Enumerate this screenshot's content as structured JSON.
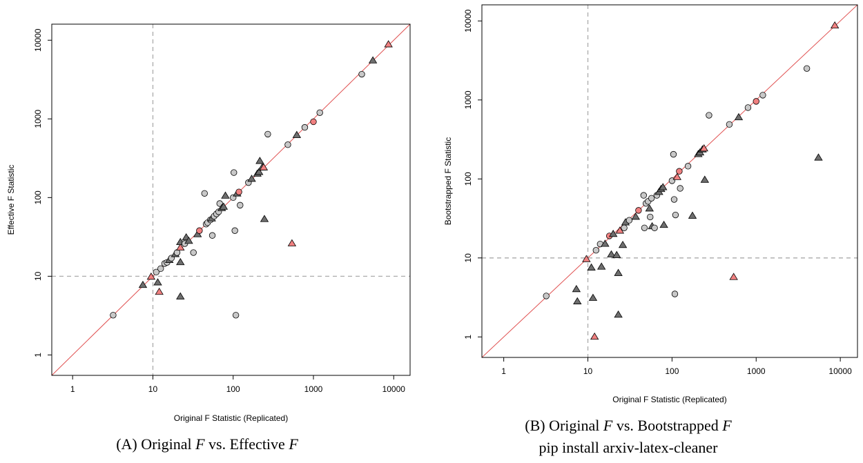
{
  "chart_data": [
    {
      "type": "scatter",
      "scale": "log10-log10",
      "xlabel": "Original F Statistic (Replicated)",
      "ylabel": "Effective F Statistic",
      "xlim": [
        0.55,
        16000
      ],
      "ylim": [
        0.55,
        16000
      ],
      "x_ticks": [
        1,
        10,
        100,
        1000,
        10000
      ],
      "y_ticks": [
        1,
        10,
        100,
        1000,
        10000
      ],
      "x_tick_labels": [
        "1",
        "10",
        "100",
        "1000",
        "10000"
      ],
      "y_tick_labels": [
        "1",
        "10",
        "100",
        "1000",
        "10000"
      ],
      "reference_lines": {
        "diagonal": "y = x",
        "vertical_x": 10,
        "horizontal_y": 10
      },
      "colors": {
        "grey_circle": "#c8c8c8",
        "dark_triangle": "#6e6e6e",
        "red": "#f08080",
        "diagonal": "#e05050",
        "dashed": "#aaaaaa"
      },
      "caption": {
        "prefix": "(A) Original ",
        "var1": "F",
        "mid": " vs. Effective ",
        "var2": "F"
      },
      "points": [
        {
          "x": 3.2,
          "y": 3.2,
          "shape": "circle",
          "color": "grey"
        },
        {
          "x": 7.5,
          "y": 7.7,
          "shape": "triangle",
          "color": "dark"
        },
        {
          "x": 9.5,
          "y": 9.8,
          "shape": "triangle",
          "color": "red"
        },
        {
          "x": 11,
          "y": 11.3,
          "shape": "circle",
          "color": "grey"
        },
        {
          "x": 11.5,
          "y": 8.3,
          "shape": "triangle",
          "color": "dark"
        },
        {
          "x": 12,
          "y": 6.3,
          "shape": "triangle",
          "color": "red"
        },
        {
          "x": 12.5,
          "y": 12.5,
          "shape": "circle",
          "color": "grey"
        },
        {
          "x": 14,
          "y": 14.5,
          "shape": "circle",
          "color": "grey"
        },
        {
          "x": 15,
          "y": 15,
          "shape": "circle",
          "color": "grey"
        },
        {
          "x": 16,
          "y": 16,
          "shape": "triangle",
          "color": "dark"
        },
        {
          "x": 17,
          "y": 17,
          "shape": "circle",
          "color": "grey"
        },
        {
          "x": 19,
          "y": 19,
          "shape": "triangle",
          "color": "dark"
        },
        {
          "x": 20,
          "y": 20,
          "shape": "circle",
          "color": "grey"
        },
        {
          "x": 22,
          "y": 15,
          "shape": "triangle",
          "color": "dark"
        },
        {
          "x": 22,
          "y": 23,
          "shape": "triangle",
          "color": "red"
        },
        {
          "x": 22,
          "y": 27,
          "shape": "triangle",
          "color": "dark"
        },
        {
          "x": 22,
          "y": 5.5,
          "shape": "triangle",
          "color": "dark"
        },
        {
          "x": 25,
          "y": 26,
          "shape": "circle",
          "color": "grey"
        },
        {
          "x": 26,
          "y": 31,
          "shape": "triangle",
          "color": "dark"
        },
        {
          "x": 28,
          "y": 28,
          "shape": "triangle",
          "color": "dark"
        },
        {
          "x": 32,
          "y": 20,
          "shape": "circle",
          "color": "grey"
        },
        {
          "x": 36,
          "y": 34,
          "shape": "triangle",
          "color": "dark"
        },
        {
          "x": 38,
          "y": 38,
          "shape": "circle",
          "color": "red"
        },
        {
          "x": 44,
          "y": 113,
          "shape": "circle",
          "color": "grey"
        },
        {
          "x": 46,
          "y": 46,
          "shape": "circle",
          "color": "grey"
        },
        {
          "x": 48,
          "y": 48,
          "shape": "circle",
          "color": "grey"
        },
        {
          "x": 52,
          "y": 52,
          "shape": "circle",
          "color": "grey"
        },
        {
          "x": 54,
          "y": 54,
          "shape": "triangle",
          "color": "dark"
        },
        {
          "x": 55,
          "y": 33,
          "shape": "circle",
          "color": "grey"
        },
        {
          "x": 58,
          "y": 58,
          "shape": "circle",
          "color": "grey"
        },
        {
          "x": 62,
          "y": 62,
          "shape": "circle",
          "color": "grey"
        },
        {
          "x": 66,
          "y": 66,
          "shape": "circle",
          "color": "grey"
        },
        {
          "x": 68,
          "y": 84,
          "shape": "circle",
          "color": "grey"
        },
        {
          "x": 72,
          "y": 73,
          "shape": "triangle",
          "color": "dark"
        },
        {
          "x": 76,
          "y": 76,
          "shape": "triangle",
          "color": "dark"
        },
        {
          "x": 80,
          "y": 105,
          "shape": "triangle",
          "color": "dark"
        },
        {
          "x": 100,
          "y": 100,
          "shape": "circle",
          "color": "grey"
        },
        {
          "x": 102,
          "y": 208,
          "shape": "circle",
          "color": "grey"
        },
        {
          "x": 105,
          "y": 38,
          "shape": "circle",
          "color": "grey"
        },
        {
          "x": 108,
          "y": 3.2,
          "shape": "circle",
          "color": "grey"
        },
        {
          "x": 112,
          "y": 112,
          "shape": "triangle",
          "color": "dark"
        },
        {
          "x": 118,
          "y": 118,
          "shape": "circle",
          "color": "red"
        },
        {
          "x": 122,
          "y": 80,
          "shape": "circle",
          "color": "grey"
        },
        {
          "x": 155,
          "y": 155,
          "shape": "circle",
          "color": "grey"
        },
        {
          "x": 170,
          "y": 172,
          "shape": "triangle",
          "color": "dark"
        },
        {
          "x": 200,
          "y": 200,
          "shape": "triangle",
          "color": "dark"
        },
        {
          "x": 210,
          "y": 210,
          "shape": "triangle",
          "color": "dark"
        },
        {
          "x": 215,
          "y": 290,
          "shape": "triangle",
          "color": "dark"
        },
        {
          "x": 230,
          "y": 240,
          "shape": "triangle",
          "color": "dark"
        },
        {
          "x": 240,
          "y": 240,
          "shape": "triangle",
          "color": "red"
        },
        {
          "x": 245,
          "y": 53,
          "shape": "triangle",
          "color": "dark"
        },
        {
          "x": 270,
          "y": 640,
          "shape": "circle",
          "color": "grey"
        },
        {
          "x": 480,
          "y": 470,
          "shape": "circle",
          "color": "grey"
        },
        {
          "x": 540,
          "y": 26,
          "shape": "triangle",
          "color": "red"
        },
        {
          "x": 620,
          "y": 620,
          "shape": "triangle",
          "color": "dark"
        },
        {
          "x": 780,
          "y": 780,
          "shape": "circle",
          "color": "grey"
        },
        {
          "x": 1000,
          "y": 920,
          "shape": "circle",
          "color": "red"
        },
        {
          "x": 1200,
          "y": 1200,
          "shape": "circle",
          "color": "grey"
        },
        {
          "x": 4000,
          "y": 3700,
          "shape": "circle",
          "color": "grey"
        },
        {
          "x": 5500,
          "y": 5500,
          "shape": "triangle",
          "color": "dark"
        },
        {
          "x": 8600,
          "y": 8800,
          "shape": "triangle",
          "color": "red"
        }
      ]
    },
    {
      "type": "scatter",
      "scale": "log10-log10",
      "xlabel": "Original F Statistic (Replicated)",
      "ylabel": "Bootstrapped F Statistic",
      "xlim": [
        0.55,
        16000
      ],
      "ylim": [
        0.55,
        16000
      ],
      "x_ticks": [
        1,
        10,
        100,
        1000,
        10000
      ],
      "y_ticks": [
        1,
        10,
        100,
        1000,
        10000
      ],
      "x_tick_labels": [
        "1",
        "10",
        "100",
        "1000",
        "10000"
      ],
      "y_tick_labels": [
        "1",
        "10",
        "100",
        "1000",
        "10000"
      ],
      "reference_lines": {
        "diagonal": "y = x",
        "vertical_x": 10,
        "horizontal_y": 10
      },
      "colors": {
        "grey_circle": "#c8c8c8",
        "dark_triangle": "#6e6e6e",
        "red": "#f08080",
        "diagonal": "#e05050",
        "dashed": "#aaaaaa"
      },
      "caption": {
        "prefix": "(B) Original ",
        "var1": "F",
        "mid": " vs. Bootstrapped ",
        "var2": "F",
        "line2": "pip install arxiv-latex-cleaner"
      },
      "points": [
        {
          "x": 3.2,
          "y": 3.3,
          "shape": "circle",
          "color": "grey"
        },
        {
          "x": 7.3,
          "y": 4.0,
          "shape": "triangle",
          "color": "dark"
        },
        {
          "x": 7.5,
          "y": 2.8,
          "shape": "triangle",
          "color": "dark"
        },
        {
          "x": 9.6,
          "y": 9.6,
          "shape": "triangle",
          "color": "red"
        },
        {
          "x": 11,
          "y": 7.5,
          "shape": "triangle",
          "color": "dark"
        },
        {
          "x": 11.5,
          "y": 3.1,
          "shape": "triangle",
          "color": "dark"
        },
        {
          "x": 12,
          "y": 1.0,
          "shape": "triangle",
          "color": "red"
        },
        {
          "x": 12.5,
          "y": 12.5,
          "shape": "circle",
          "color": "grey"
        },
        {
          "x": 14,
          "y": 15,
          "shape": "circle",
          "color": "grey"
        },
        {
          "x": 14.5,
          "y": 7.7,
          "shape": "triangle",
          "color": "dark"
        },
        {
          "x": 16,
          "y": 15,
          "shape": "triangle",
          "color": "dark"
        },
        {
          "x": 18,
          "y": 19,
          "shape": "circle",
          "color": "red"
        },
        {
          "x": 19,
          "y": 11,
          "shape": "triangle",
          "color": "dark"
        },
        {
          "x": 20,
          "y": 20,
          "shape": "triangle",
          "color": "dark"
        },
        {
          "x": 22,
          "y": 10.8,
          "shape": "triangle",
          "color": "dark"
        },
        {
          "x": 23,
          "y": 6.4,
          "shape": "triangle",
          "color": "dark"
        },
        {
          "x": 23,
          "y": 1.9,
          "shape": "triangle",
          "color": "dark"
        },
        {
          "x": 24,
          "y": 22,
          "shape": "triangle",
          "color": "red"
        },
        {
          "x": 26,
          "y": 14.5,
          "shape": "triangle",
          "color": "dark"
        },
        {
          "x": 27,
          "y": 24,
          "shape": "circle",
          "color": "grey"
        },
        {
          "x": 28,
          "y": 28,
          "shape": "triangle",
          "color": "dark"
        },
        {
          "x": 31,
          "y": 30,
          "shape": "circle",
          "color": "grey"
        },
        {
          "x": 37,
          "y": 33,
          "shape": "triangle",
          "color": "dark"
        },
        {
          "x": 40,
          "y": 40,
          "shape": "circle",
          "color": "red"
        },
        {
          "x": 46,
          "y": 62,
          "shape": "circle",
          "color": "grey"
        },
        {
          "x": 47,
          "y": 24,
          "shape": "circle",
          "color": "grey"
        },
        {
          "x": 49,
          "y": 49,
          "shape": "circle",
          "color": "grey"
        },
        {
          "x": 52,
          "y": 52,
          "shape": "circle",
          "color": "grey"
        },
        {
          "x": 54,
          "y": 42,
          "shape": "triangle",
          "color": "dark"
        },
        {
          "x": 55,
          "y": 33,
          "shape": "circle",
          "color": "grey"
        },
        {
          "x": 57,
          "y": 57,
          "shape": "circle",
          "color": "grey"
        },
        {
          "x": 58,
          "y": 25,
          "shape": "triangle",
          "color": "dark"
        },
        {
          "x": 62,
          "y": 24,
          "shape": "circle",
          "color": "grey"
        },
        {
          "x": 66,
          "y": 62,
          "shape": "circle",
          "color": "grey"
        },
        {
          "x": 70,
          "y": 68,
          "shape": "triangle",
          "color": "dark"
        },
        {
          "x": 74,
          "y": 74,
          "shape": "triangle",
          "color": "dark"
        },
        {
          "x": 78,
          "y": 78,
          "shape": "triangle",
          "color": "dark"
        },
        {
          "x": 80,
          "y": 26,
          "shape": "triangle",
          "color": "dark"
        },
        {
          "x": 100,
          "y": 95,
          "shape": "circle",
          "color": "grey"
        },
        {
          "x": 104,
          "y": 205,
          "shape": "circle",
          "color": "grey"
        },
        {
          "x": 106,
          "y": 55,
          "shape": "circle",
          "color": "grey"
        },
        {
          "x": 108,
          "y": 3.5,
          "shape": "circle",
          "color": "grey"
        },
        {
          "x": 110,
          "y": 35,
          "shape": "circle",
          "color": "grey"
        },
        {
          "x": 115,
          "y": 105,
          "shape": "triangle",
          "color": "red"
        },
        {
          "x": 122,
          "y": 125,
          "shape": "circle",
          "color": "red"
        },
        {
          "x": 125,
          "y": 76,
          "shape": "circle",
          "color": "grey"
        },
        {
          "x": 155,
          "y": 145,
          "shape": "circle",
          "color": "grey"
        },
        {
          "x": 175,
          "y": 34,
          "shape": "triangle",
          "color": "dark"
        },
        {
          "x": 205,
          "y": 205,
          "shape": "triangle",
          "color": "dark"
        },
        {
          "x": 215,
          "y": 215,
          "shape": "triangle",
          "color": "dark"
        },
        {
          "x": 230,
          "y": 235,
          "shape": "triangle",
          "color": "dark"
        },
        {
          "x": 240,
          "y": 242,
          "shape": "triangle",
          "color": "red"
        },
        {
          "x": 245,
          "y": 97,
          "shape": "triangle",
          "color": "dark"
        },
        {
          "x": 275,
          "y": 640,
          "shape": "circle",
          "color": "grey"
        },
        {
          "x": 480,
          "y": 490,
          "shape": "circle",
          "color": "grey"
        },
        {
          "x": 540,
          "y": 5.7,
          "shape": "triangle",
          "color": "red"
        },
        {
          "x": 620,
          "y": 600,
          "shape": "triangle",
          "color": "dark"
        },
        {
          "x": 800,
          "y": 800,
          "shape": "circle",
          "color": "grey"
        },
        {
          "x": 1000,
          "y": 960,
          "shape": "circle",
          "color": "red"
        },
        {
          "x": 1200,
          "y": 1150,
          "shape": "circle",
          "color": "grey"
        },
        {
          "x": 4000,
          "y": 2500,
          "shape": "circle",
          "color": "grey"
        },
        {
          "x": 5500,
          "y": 185,
          "shape": "triangle",
          "color": "dark"
        },
        {
          "x": 8600,
          "y": 8700,
          "shape": "triangle",
          "color": "red"
        }
      ]
    }
  ]
}
